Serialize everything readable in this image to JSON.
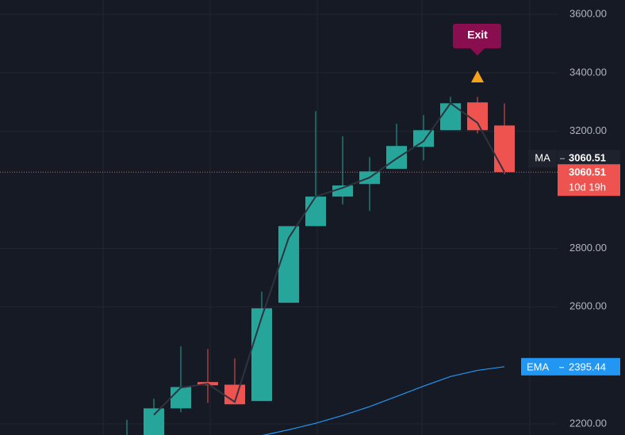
{
  "chart_data": {
    "type": "candlestick",
    "categories": [
      null,
      null,
      null,
      null,
      null,
      null,
      null,
      null,
      null,
      null,
      null,
      null,
      null,
      null,
      null
    ],
    "open": [
      2100,
      2160,
      2253,
      2343,
      2334,
      2278,
      2614,
      2876,
      2977,
      3020,
      3072,
      3147,
      3204,
      3299,
      3220
    ],
    "high": [
      2214,
      2286,
      2465,
      2456,
      2424,
      2652,
      2876,
      3269,
      3183,
      3112,
      3226,
      3256,
      3318,
      3318,
      3296
    ],
    "low": [
      2090,
      2140,
      2240,
      2272,
      2267,
      2278,
      2614,
      2876,
      2950,
      2928,
      3072,
      3101,
      3204,
      3193,
      3053
    ],
    "close": [
      2150,
      2253,
      2326,
      2332,
      2267,
      2595,
      2876,
      2977,
      3015,
      3063,
      3150,
      3204,
      3296,
      3204,
      3060.51
    ],
    "up_color": "#26a69a",
    "down_color": "#ef5350",
    "series": [
      {
        "name": "MA",
        "color": "#2f333e",
        "values": [
          null,
          2231,
          2324,
          2337,
          2275,
          2565,
          2836,
          2977,
          3007,
          3042,
          3107,
          3166,
          3296,
          3229,
          3060.51
        ]
      },
      {
        "name": "EMA",
        "color": "#2196f3",
        "values": [
          null,
          null,
          null,
          null,
          null,
          2160,
          2180,
          2202,
          2229,
          2259,
          2294,
          2329,
          2362,
          2383,
          2395.44
        ]
      }
    ],
    "countdown": "10d 19h",
    "annotation": {
      "text": "Exit",
      "at": 13
    },
    "ylim": [
      2162,
      3649
    ],
    "yticks": [
      {
        "value": 2200,
        "label": "2200.00"
      },
      {
        "value": 2600,
        "label": "2600.00"
      },
      {
        "value": 2800,
        "label": "2800.00"
      },
      {
        "value": 3200,
        "label": "3200.00"
      },
      {
        "value": 3400,
        "label": "3400.00"
      },
      {
        "value": 3600,
        "label": "3600.00"
      }
    ],
    "grid": true
  }
}
